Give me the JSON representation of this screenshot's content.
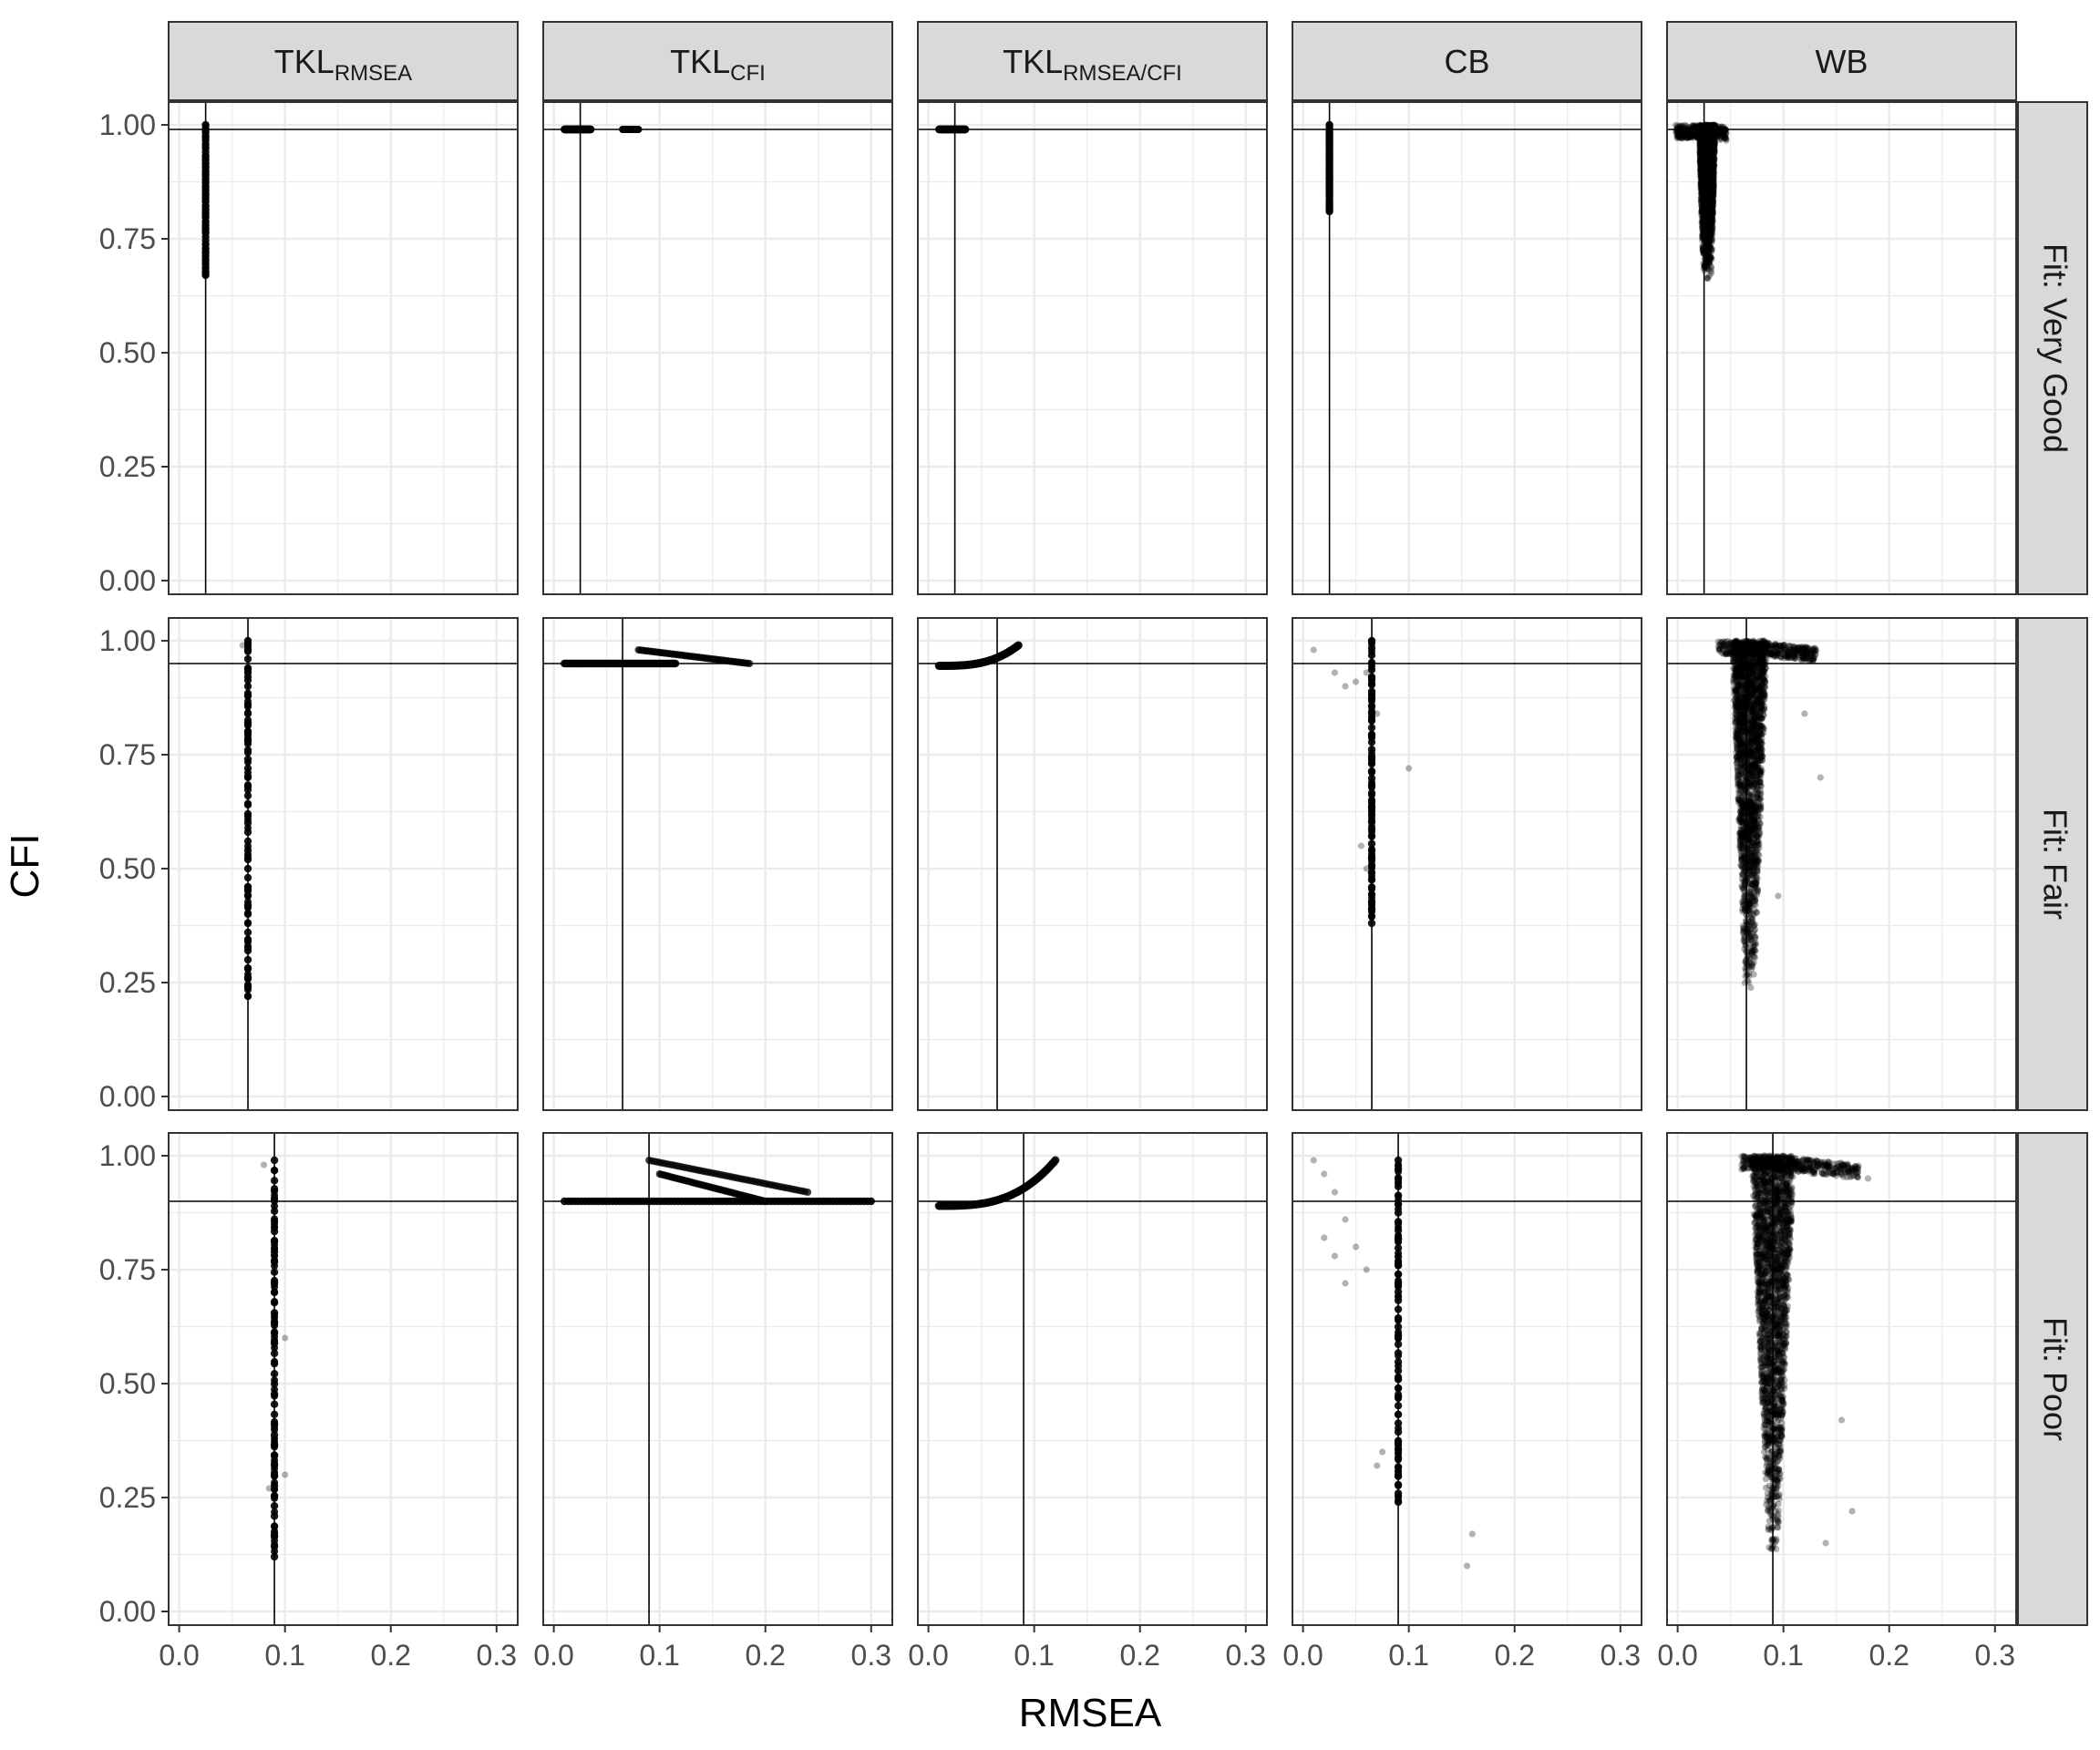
{
  "chart_data": {
    "type": "scatter",
    "layout": "facet_grid",
    "xlabel": "RMSEA",
    "ylabel": "CFI",
    "xlim": [
      -0.01,
      0.32
    ],
    "ylim": [
      -0.03,
      1.05
    ],
    "x_ticks": [
      0.0,
      0.1,
      0.2,
      0.3
    ],
    "x_tick_labels": [
      "0.0",
      "0.1",
      "0.2",
      "0.3"
    ],
    "y_ticks": [
      0.0,
      0.25,
      0.5,
      0.75,
      1.0
    ],
    "y_tick_labels": [
      "0.00",
      "0.25",
      "0.50",
      "0.75",
      "1.00"
    ],
    "columns": [
      {
        "key": "TKL_RMSEA",
        "base": "TKL",
        "sub": "RMSEA"
      },
      {
        "key": "TKL_CFI",
        "base": "TKL",
        "sub": "CFI"
      },
      {
        "key": "TKL_RMSEA_CFI",
        "base": "TKL",
        "sub": "RMSEA/CFI"
      },
      {
        "key": "CB",
        "base": "CB",
        "sub": ""
      },
      {
        "key": "WB",
        "base": "WB",
        "sub": ""
      }
    ],
    "rows": [
      {
        "label": "Fit: Very Good",
        "ref_rmsea": 0.025,
        "ref_cfi": 0.99
      },
      {
        "label": "Fit: Fair",
        "ref_rmsea": 0.065,
        "ref_cfi": 0.95
      },
      {
        "label": "Fit: Poor",
        "ref_rmsea": 0.09,
        "ref_cfi": 0.9
      }
    ],
    "grid": true,
    "point_color": "#000000",
    "point_opacity": 0.3,
    "panels": [
      [
        {
          "shape": "vline",
          "x": 0.025,
          "y": [
            0.67,
            1.0
          ]
        },
        {
          "shape": "hband",
          "x": [
            0.01,
            0.035
          ],
          "y": 0.99,
          "extra": [
            [
              0.065,
              0.08,
              0.99
            ]
          ]
        },
        {
          "shape": "hband",
          "x": [
            0.01,
            0.035
          ],
          "y": 0.99
        },
        {
          "shape": "vline",
          "x": 0.025,
          "y": [
            0.81,
            1.0
          ]
        },
        {
          "shape": "wedge",
          "x": 0.028,
          "y": [
            0.66,
            1.0
          ],
          "spread": 0.02
        }
      ],
      [
        {
          "shape": "vline",
          "x": 0.065,
          "y": [
            0.22,
            1.0
          ],
          "outliers": [
            [
              0.06,
              0.99
            ]
          ]
        },
        {
          "shape": "hband",
          "x": [
            0.01,
            0.115
          ],
          "y": 0.95,
          "extra": [
            [
              0.08,
              0.185,
              0.98,
              0.95
            ]
          ]
        },
        {
          "shape": "curve",
          "x": [
            0.01,
            0.085
          ],
          "y": [
            0.945,
            0.99
          ]
        },
        {
          "shape": "vline",
          "x": 0.065,
          "y": [
            0.38,
            1.0
          ],
          "outliers": [
            [
              0.01,
              0.98
            ],
            [
              0.03,
              0.93
            ],
            [
              0.04,
              0.9
            ],
            [
              0.05,
              0.91
            ],
            [
              0.06,
              0.93
            ],
            [
              0.1,
              0.72
            ],
            [
              0.055,
              0.55
            ],
            [
              0.06,
              0.5
            ],
            [
              0.07,
              0.84
            ]
          ]
        },
        {
          "shape": "wedge",
          "x": 0.068,
          "y": [
            0.22,
            1.0
          ],
          "spread": 0.07,
          "outliers": [
            [
              0.135,
              0.7
            ],
            [
              0.095,
              0.44
            ],
            [
              0.12,
              0.84
            ]
          ]
        }
      ],
      [
        {
          "shape": "vline",
          "x": 0.09,
          "y": [
            0.12,
            0.99
          ],
          "outliers": [
            [
              0.08,
              0.98
            ],
            [
              0.1,
              0.6
            ],
            [
              0.1,
              0.3
            ],
            [
              0.085,
              0.27
            ]
          ]
        },
        {
          "shape": "hband",
          "x": [
            0.01,
            0.3
          ],
          "y": 0.9,
          "extra": [
            [
              0.09,
              0.24,
              0.99,
              0.92
            ],
            [
              0.1,
              0.2,
              0.96,
              0.9
            ]
          ]
        },
        {
          "shape": "curve",
          "x": [
            0.01,
            0.12
          ],
          "y": [
            0.89,
            0.99
          ]
        },
        {
          "shape": "vline",
          "x": 0.09,
          "y": [
            0.24,
            0.99
          ],
          "outliers": [
            [
              0.01,
              0.99
            ],
            [
              0.02,
              0.96
            ],
            [
              0.03,
              0.92
            ],
            [
              0.04,
              0.86
            ],
            [
              0.05,
              0.8
            ],
            [
              0.02,
              0.82
            ],
            [
              0.03,
              0.78
            ],
            [
              0.06,
              0.75
            ],
            [
              0.04,
              0.72
            ],
            [
              0.07,
              0.32
            ],
            [
              0.16,
              0.17
            ],
            [
              0.155,
              0.1
            ],
            [
              0.075,
              0.35
            ]
          ]
        },
        {
          "shape": "wedge",
          "x": 0.09,
          "y": [
            0.11,
            1.0
          ],
          "spread": 0.09,
          "outliers": [
            [
              0.165,
              0.22
            ],
            [
              0.14,
              0.15
            ],
            [
              0.155,
              0.42
            ],
            [
              0.18,
              0.95
            ]
          ]
        }
      ]
    ]
  }
}
